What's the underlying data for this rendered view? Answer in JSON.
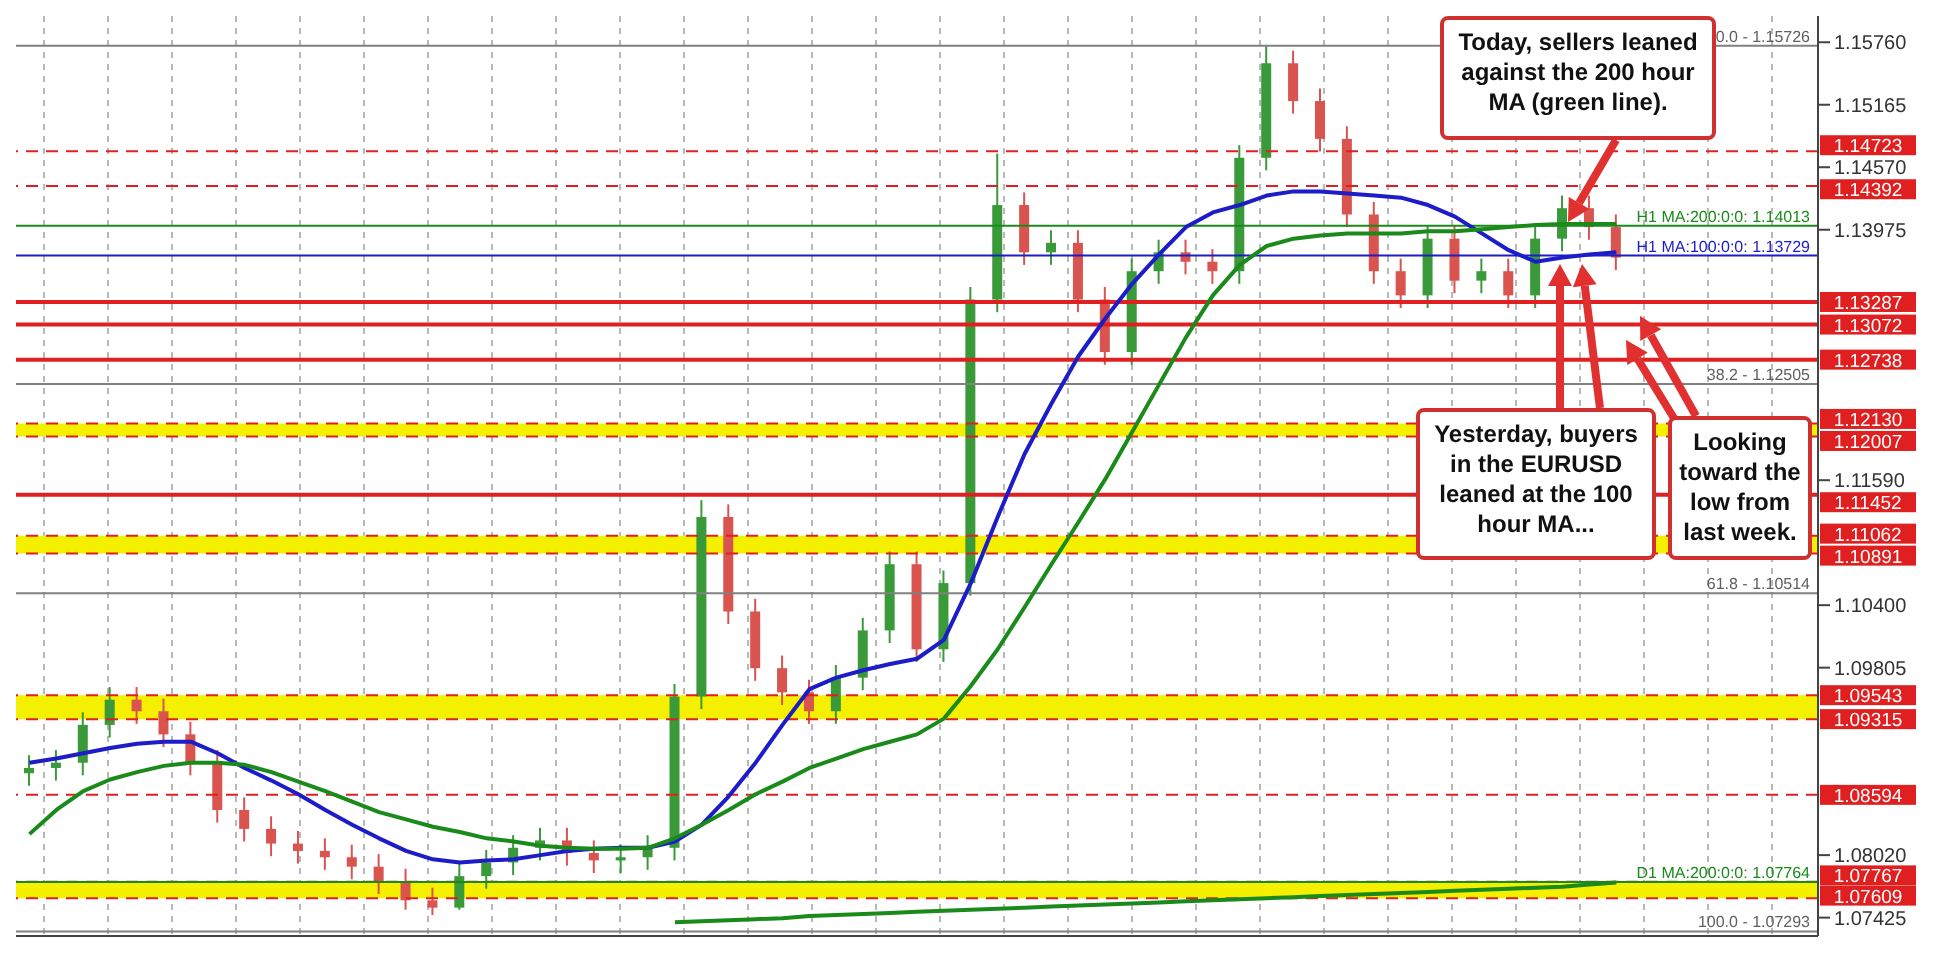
{
  "chart_data": {
    "type": "candlestick",
    "categories": [
      null,
      null,
      null,
      null,
      null,
      null,
      null,
      null,
      null,
      null,
      null,
      null,
      null,
      null,
      null,
      null,
      null,
      null,
      null,
      null,
      null,
      null,
      null,
      null,
      null,
      null,
      null,
      null,
      null,
      null,
      null,
      null,
      null,
      null,
      null,
      null,
      null,
      null,
      null,
      null,
      null,
      null,
      null,
      null,
      null,
      null,
      null,
      null,
      null,
      null,
      null,
      null,
      null,
      null,
      null,
      null,
      null,
      null,
      null,
      null,
      null,
      null,
      null,
      null,
      null,
      null,
      null
    ],
    "ohlc": [
      [
        1.088,
        1.0897,
        1.0868,
        1.0885
      ],
      [
        1.0885,
        1.0902,
        1.0873,
        1.089
      ],
      [
        1.089,
        1.0938,
        1.0878,
        1.0926
      ],
      [
        1.0926,
        1.0962,
        1.0914,
        1.095
      ],
      [
        1.095,
        1.0962,
        1.0927,
        1.0939
      ],
      [
        1.0939,
        1.0951,
        1.0905,
        1.0917
      ],
      [
        1.0917,
        1.0929,
        1.0878,
        1.089
      ],
      [
        1.089,
        1.0902,
        1.0833,
        1.0845
      ],
      [
        1.0845,
        1.0857,
        1.0815,
        1.0827
      ],
      [
        1.0827,
        1.0839,
        1.0801,
        1.0813
      ],
      [
        1.0813,
        1.0825,
        1.0794,
        1.0806
      ],
      [
        1.0806,
        1.0818,
        1.0788,
        1.08
      ],
      [
        1.08,
        1.0812,
        1.0779,
        1.0791
      ],
      [
        1.0791,
        1.0803,
        1.0765,
        1.0777
      ],
      [
        1.0777,
        1.0789,
        1.075,
        1.0759
      ],
      [
        1.0759,
        1.0771,
        1.0745,
        1.0752
      ],
      [
        1.0752,
        1.0794,
        1.075,
        1.0782
      ],
      [
        1.0782,
        1.0807,
        1.077,
        1.0795
      ],
      [
        1.0795,
        1.0821,
        1.0783,
        1.0809
      ],
      [
        1.0809,
        1.0828,
        1.0797,
        1.0816
      ],
      [
        1.0816,
        1.0828,
        1.0792,
        1.0804
      ],
      [
        1.0804,
        1.0816,
        1.0785,
        1.0797
      ],
      [
        1.0797,
        1.0812,
        1.0785,
        1.08
      ],
      [
        1.08,
        1.0821,
        1.0788,
        1.0809
      ],
      [
        1.0809,
        1.0965,
        1.0797,
        1.0953
      ],
      [
        1.0953,
        1.114,
        1.0941,
        1.1124
      ],
      [
        1.1124,
        1.1136,
        1.1022,
        1.1034
      ],
      [
        1.1034,
        1.1046,
        1.0968,
        1.098
      ],
      [
        1.098,
        1.0992,
        1.0945,
        1.0957
      ],
      [
        1.0957,
        1.0969,
        1.0927,
        1.0939
      ],
      [
        1.0939,
        1.0983,
        1.0927,
        1.0971
      ],
      [
        1.0971,
        1.1028,
        1.0959,
        1.1016
      ],
      [
        1.1016,
        1.1091,
        1.1004,
        1.1079
      ],
      [
        1.1079,
        1.1091,
        1.0986,
        1.0998
      ],
      [
        1.0998,
        1.1073,
        1.0986,
        1.1061
      ],
      [
        1.1061,
        1.1343,
        1.1049,
        1.1331
      ],
      [
        1.1331,
        1.147,
        1.1319,
        1.1421
      ],
      [
        1.1421,
        1.1433,
        1.1364,
        1.1376
      ],
      [
        1.1376,
        1.1397,
        1.1364,
        1.1385
      ],
      [
        1.1385,
        1.1397,
        1.1319,
        1.1331
      ],
      [
        1.1331,
        1.1343,
        1.1269,
        1.1281
      ],
      [
        1.1281,
        1.137,
        1.1269,
        1.1358
      ],
      [
        1.1358,
        1.1388,
        1.1346,
        1.1376
      ],
      [
        1.1376,
        1.1388,
        1.1355,
        1.1367
      ],
      [
        1.1367,
        1.1379,
        1.1346,
        1.1358
      ],
      [
        1.1358,
        1.1478,
        1.1346,
        1.1466
      ],
      [
        1.1466,
        1.1573,
        1.1454,
        1.1556
      ],
      [
        1.1556,
        1.1568,
        1.1508,
        1.152
      ],
      [
        1.152,
        1.1532,
        1.1472,
        1.1484
      ],
      [
        1.1484,
        1.1496,
        1.14,
        1.1412
      ],
      [
        1.1412,
        1.1424,
        1.1346,
        1.1358
      ],
      [
        1.1358,
        1.137,
        1.1323,
        1.1335
      ],
      [
        1.1335,
        1.1401,
        1.1323,
        1.1389
      ],
      [
        1.1389,
        1.1401,
        1.1337,
        1.1349
      ],
      [
        1.1349,
        1.137,
        1.1337,
        1.1358
      ],
      [
        1.1358,
        1.137,
        1.1323,
        1.1335
      ],
      [
        1.1335,
        1.1401,
        1.1323,
        1.1389
      ],
      [
        1.1389,
        1.143,
        1.1377,
        1.1418
      ],
      [
        1.1418,
        1.143,
        1.1388,
        1.14
      ],
      [
        1.14,
        1.1412,
        1.1359,
        1.1371
      ],
      null,
      null,
      null,
      null,
      null,
      null,
      null
    ],
    "colors": [
      "#3a9a3a",
      "#3a9a3a",
      "#3a9a3a",
      "#3a9a3a",
      "#d9534f",
      "#d9534f",
      "#d9534f",
      "#d9534f",
      "#d9534f",
      "#d9534f",
      "#d9534f",
      "#d9534f",
      "#d9534f",
      "#d9534f",
      "#d9534f",
      "#d9534f",
      "#3a9a3a",
      "#3a9a3a",
      "#3a9a3a",
      "#3a9a3a",
      "#d9534f",
      "#d9534f",
      "#3a9a3a",
      "#3a9a3a",
      "#3a9a3a",
      "#3a9a3a",
      "#d9534f",
      "#d9534f",
      "#d9534f",
      "#d9534f",
      "#3a9a3a",
      "#3a9a3a",
      "#3a9a3a",
      "#d9534f",
      "#3a9a3a",
      "#3a9a3a",
      "#3a9a3a",
      "#d9534f",
      "#3a9a3a",
      "#d9534f",
      "#d9534f",
      "#3a9a3a",
      "#3a9a3a",
      "#d9534f",
      "#d9534f",
      "#3a9a3a",
      "#3a9a3a",
      "#d9534f",
      "#d9534f",
      "#d9534f",
      "#d9534f",
      "#d9534f",
      "#3a9a3a",
      "#d9534f",
      "#3a9a3a",
      "#d9534f",
      "#3a9a3a",
      "#3a9a3a",
      "#d9534f",
      "#d9534f",
      null,
      null,
      null,
      null,
      null,
      null,
      null
    ],
    "series": [
      {
        "type": "line",
        "color": "#1c1cc8",
        "values": [
          1.089,
          1.0894,
          1.0899,
          1.0904,
          1.0908,
          1.091,
          1.091,
          1.0899,
          1.0885,
          1.0873,
          1.086,
          1.0845,
          1.0831,
          1.0818,
          1.0806,
          1.0798,
          1.0795,
          1.0797,
          1.0798,
          1.0802,
          1.0806,
          1.0808,
          1.0809,
          1.0809,
          1.0815,
          1.0831,
          1.0858,
          1.089,
          1.0926,
          1.096,
          1.0971,
          1.0978,
          1.0984,
          1.0989,
          1.1007,
          1.1061,
          1.1124,
          1.1184,
          1.1232,
          1.1277,
          1.1313,
          1.1346,
          1.1374,
          1.14,
          1.1414,
          1.1421,
          1.143,
          1.1434,
          1.1434,
          1.1432,
          1.143,
          1.1428,
          1.1421,
          1.141,
          1.1394,
          1.1378,
          1.1367,
          1.1371,
          1.1374,
          1.1376,
          null,
          null,
          null,
          null,
          null,
          null,
          null
        ]
      },
      {
        "type": "line",
        "color": "#1a8a1a",
        "values": [
          1.0822,
          1.0845,
          1.0863,
          1.0874,
          1.0881,
          1.0887,
          1.089,
          1.089,
          1.0888,
          1.0881,
          1.0872,
          1.0863,
          1.0853,
          1.0843,
          1.0836,
          1.0829,
          1.0824,
          1.0818,
          1.0815,
          1.0811,
          1.0809,
          1.0808,
          1.0808,
          1.0809,
          1.0818,
          1.0831,
          1.0845,
          1.086,
          1.0872,
          1.0885,
          1.0894,
          1.0903,
          1.091,
          1.0917,
          1.0932,
          1.0963,
          1.0998,
          1.1038,
          1.1079,
          1.1119,
          1.116,
          1.1205,
          1.125,
          1.1295,
          1.1335,
          1.1364,
          1.1382,
          1.1389,
          1.1392,
          1.1394,
          1.1394,
          1.1394,
          1.1396,
          1.1396,
          1.1398,
          1.14,
          1.1402,
          1.1403,
          1.1403,
          1.1403,
          null,
          null,
          null,
          null,
          null,
          null,
          null
        ]
      },
      {
        "type": "line",
        "color": "#1a8a1a",
        "values": [
          null,
          null,
          null,
          null,
          null,
          null,
          null,
          null,
          null,
          null,
          null,
          null,
          null,
          null,
          null,
          null,
          null,
          null,
          null,
          null,
          null,
          null,
          null,
          null,
          1.0738,
          1.0739,
          1.074,
          1.0741,
          1.0742,
          1.0744,
          1.0745,
          1.0746,
          1.0747,
          1.0748,
          1.0749,
          1.075,
          1.0751,
          1.0752,
          1.0753,
          1.0754,
          1.0755,
          1.0756,
          1.0757,
          1.0758,
          1.0759,
          1.076,
          1.0761,
          1.0762,
          1.0763,
          1.0764,
          1.0765,
          1.0766,
          1.0767,
          1.0768,
          1.0769,
          1.077,
          1.0771,
          1.0772,
          1.0774,
          1.0776,
          null,
          null,
          null,
          null,
          null,
          null,
          null
        ]
      }
    ],
    "ylim": [
      1.0725,
      1.1601
    ],
    "yticks": [
      {
        "value": 1.1576,
        "label": "1.15760"
      },
      1.15165,
      {
        "value": 1.1457,
        "label": "1.14570"
      },
      1.13975,
      {
        "value": 1.1159,
        "label": "1.11590"
      },
      {
        "value": 1.104,
        "label": "1.10400"
      },
      1.09805,
      {
        "value": 1.0802,
        "label": "1.08020"
      },
      1.07425
    ],
    "tick_labels": "y",
    "grid": "x",
    "legend": false,
    "bands": [
      {
        "axis": "y",
        "from": 1.12007,
        "to": 1.1213,
        "color": "#f5f000"
      },
      {
        "axis": "y",
        "from": 1.10891,
        "to": 1.11062,
        "color": "#f5f000"
      },
      {
        "axis": "y",
        "from": 1.09315,
        "to": 1.09543,
        "color": "#f5f000"
      },
      {
        "axis": "y",
        "from": 1.07609,
        "to": 1.07767,
        "color": "#f5f000"
      }
    ],
    "ref_lines": [
      {
        "axis": "y",
        "value": 1.14723,
        "label": "1.14723",
        "color": "#e02020",
        "line_style": "dashed"
      },
      {
        "axis": "y",
        "value": 1.14392,
        "label": "1.14392",
        "color": "#e02020",
        "line_style": "dashed"
      },
      {
        "axis": "y",
        "value": 1.13287,
        "label": "1.13287",
        "color": "#e02020",
        "line_style": "solid"
      },
      {
        "axis": "y",
        "value": 1.13072,
        "label": "1.13072",
        "color": "#e02020",
        "line_style": "solid"
      },
      {
        "axis": "y",
        "value": 1.12738,
        "label": "1.12738",
        "color": "#e02020",
        "line_style": "solid"
      },
      {
        "axis": "y",
        "value": 1.1213,
        "label": "1.12130",
        "color": "#e02020",
        "line_style": "dashed"
      },
      {
        "axis": "y",
        "value": 1.12007,
        "label": "1.12007",
        "color": "#e02020",
        "line_style": "dashed"
      },
      {
        "axis": "y",
        "value": 1.11452,
        "label": "1.11452",
        "color": "#e02020",
        "line_style": "solid"
      },
      {
        "axis": "y",
        "value": 1.11062,
        "label": "1.11062",
        "color": "#e02020",
        "line_style": "dashed"
      },
      {
        "axis": "y",
        "value": 1.10891,
        "label": "1.10891",
        "color": "#e02020",
        "line_style": "dashed"
      },
      {
        "axis": "y",
        "value": 1.09543,
        "label": "1.09543",
        "color": "#e02020",
        "line_style": "dashed"
      },
      {
        "axis": "y",
        "value": 1.09315,
        "label": "1.09315",
        "color": "#e02020",
        "line_style": "dashed"
      },
      {
        "axis": "y",
        "value": 1.08594,
        "label": "1.08594",
        "color": "#e02020",
        "line_style": "dashed"
      },
      {
        "axis": "y",
        "value": 1.07767,
        "label": "1.07767",
        "color": "#e02020",
        "line_style": "dashed"
      },
      {
        "axis": "y",
        "value": 1.07609,
        "label": "1.07609",
        "color": "#e02020",
        "line_style": "dashed"
      },
      {
        "axis": "y",
        "value": 1.15726,
        "color": "#808080",
        "line_style": "solid"
      },
      {
        "axis": "y",
        "value": 1.12505,
        "color": "#808080",
        "line_style": "solid"
      },
      {
        "axis": "y",
        "value": 1.10514,
        "color": "#808080",
        "line_style": "solid"
      },
      {
        "axis": "y",
        "value": 1.07293,
        "color": "#808080",
        "line_style": "solid"
      },
      {
        "axis": "y",
        "value": 1.14013,
        "label": "H1 MA:200:0:0: 1.14013",
        "color": "#1a8a1a",
        "line_style": "solid"
      },
      {
        "axis": "y",
        "value": 1.13729,
        "label": "H1 MA:100:0:0: 1.13729",
        "color": "#1c1cc8",
        "line_style": "solid"
      },
      {
        "axis": "y",
        "value": 1.07764,
        "label": "D1 MA:200:0:0: 1.07764",
        "color": "#1a8a1a",
        "line_style": "solid"
      }
    ],
    "annotations": [
      "Today, sellers leaned against the 200 hour MA (green line).",
      "Yesterday, buyers in the EURUSD leaned at the 100 hour MA...",
      "Looking toward the low from last week.",
      {
        "text": "0.0 - 1.15726",
        "y": 1.15726
      },
      {
        "text": "38.2 - 1.12505",
        "y": 1.12505
      },
      {
        "text": "61.8 - 1.10514",
        "y": 1.10514
      },
      {
        "text": "100.0 - 1.07293",
        "y": 1.07293
      }
    ]
  }
}
